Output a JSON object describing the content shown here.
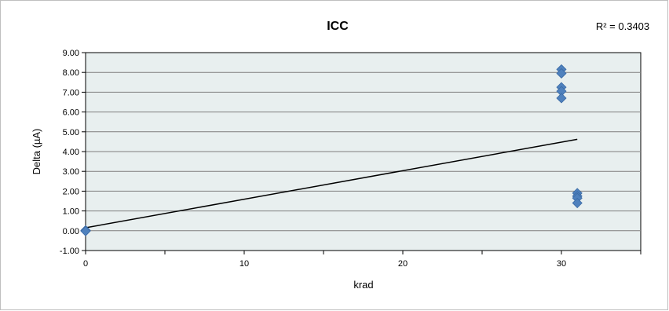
{
  "chart_data": {
    "type": "scatter",
    "title": "ICC",
    "xlabel": "krad",
    "ylabel": "Delta (µA)",
    "xlim": [
      0,
      35
    ],
    "ylim": [
      -1,
      9
    ],
    "xticks": [
      0,
      10,
      20,
      30
    ],
    "xtick_labels": [
      "0",
      "10",
      "20",
      "30"
    ],
    "yticks": [
      -1,
      0,
      1,
      2,
      3,
      4,
      5,
      6,
      7,
      8,
      9
    ],
    "ytick_labels": [
      "-1.00",
      "0.00",
      "1.00",
      "2.00",
      "3.00",
      "4.00",
      "5.00",
      "6.00",
      "7.00",
      "8.00",
      "9.00"
    ],
    "grid": "horizontal",
    "plot_background": "#e8efef",
    "marker_color": "#4f81bd",
    "series": [
      {
        "marker": "diamond",
        "points": [
          {
            "x": 0,
            "y": 0.0
          },
          {
            "x": 0,
            "y": 0.02
          },
          {
            "x": 0,
            "y": -0.02
          },
          {
            "x": 30,
            "y": 8.15
          },
          {
            "x": 30,
            "y": 7.95
          },
          {
            "x": 30,
            "y": 7.25
          },
          {
            "x": 30,
            "y": 7.05
          },
          {
            "x": 30,
            "y": 6.7
          },
          {
            "x": 31,
            "y": 1.9
          },
          {
            "x": 31,
            "y": 1.75
          },
          {
            "x": 31,
            "y": 1.65
          },
          {
            "x": 31,
            "y": 1.4
          }
        ]
      }
    ],
    "trendline": {
      "type": "linear",
      "x": [
        0,
        31
      ],
      "y": [
        0.15,
        4.62
      ],
      "r2_label": "R² = 0.3403"
    }
  }
}
